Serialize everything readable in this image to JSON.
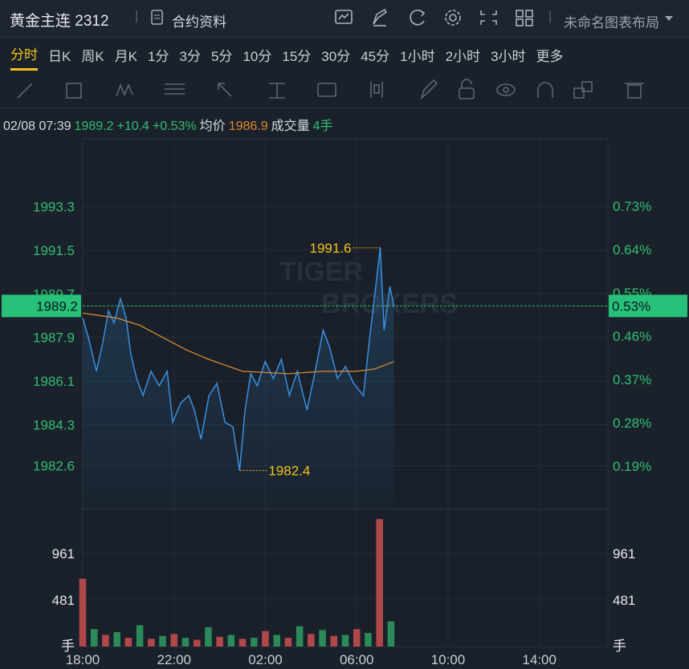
{
  "header": {
    "title": "黄金主连 2312",
    "contract_info": "合约资料",
    "layout_name": "未命名图表布局"
  },
  "tabs": [
    "分时",
    "日K",
    "周K",
    "月K",
    "1分",
    "3分",
    "5分",
    "10分",
    "15分",
    "30分",
    "45分",
    "1小时",
    "2小时",
    "3小时",
    "更多"
  ],
  "active_tab": 0,
  "info": {
    "datetime": "02/08 07:39",
    "price": 1989.2,
    "change": "+10.4",
    "change_pct": "+0.53%",
    "avg_label": "均价",
    "avg": 1986.9,
    "volume_label": "成交量",
    "volume": "4手"
  },
  "watermark": [
    "TIGER",
    "BROKERS"
  ],
  "chart_data": {
    "type": "line",
    "series": [
      {
        "name": "价格",
        "color": "#3a8fe0",
        "x": [
          0,
          0.25,
          0.6,
          0.88,
          1.13,
          1.37,
          1.65,
          1.9,
          2.11,
          2.36,
          2.64,
          2.99,
          3.35,
          3.7,
          3.94,
          4.3,
          4.65,
          4.89,
          5.18,
          5.53,
          5.88,
          6.23,
          6.58,
          6.87,
          7.11,
          7.36,
          7.64,
          7.99,
          8.35,
          8.7,
          9.05,
          9.4,
          9.82,
          10.18,
          10.53,
          10.81,
          11.16,
          11.51,
          11.87,
          12.29,
          12.57,
          12.82,
          13.03,
          13.2,
          13.45,
          13.63
        ],
        "values": [
          1988.7,
          1987.9,
          1986.5,
          1987.7,
          1989.0,
          1988.5,
          1989.5,
          1988.7,
          1987.2,
          1986.2,
          1985.5,
          1986.5,
          1985.9,
          1986.5,
          1984.4,
          1985.2,
          1985.5,
          1984.9,
          1983.7,
          1985.5,
          1986.0,
          1984.4,
          1984.2,
          1982.4,
          1984.9,
          1986.4,
          1985.9,
          1986.9,
          1986.2,
          1987.0,
          1985.5,
          1986.5,
          1984.9,
          1986.5,
          1988.2,
          1987.5,
          1986.2,
          1986.7,
          1986.0,
          1985.5,
          1987.9,
          1989.9,
          1991.6,
          1988.2,
          1990.0,
          1989.2
        ]
      },
      {
        "name": "均价",
        "color": "#d98a32",
        "x": [
          0,
          1.5,
          2.5,
          3.5,
          4.5,
          5.5,
          7,
          9,
          10.5,
          12,
          12.8,
          13.63
        ],
        "values": [
          1988.9,
          1988.7,
          1988.4,
          1987.9,
          1987.4,
          1987.0,
          1986.5,
          1986.4,
          1986.5,
          1986.5,
          1986.6,
          1986.9
        ]
      }
    ],
    "ylim": [
      1980.8,
      1996.1
    ],
    "yticks": [
      1982.6,
      1984.3,
      1986.1,
      1987.9,
      1989.7,
      1991.5,
      1993.3
    ],
    "y2lim": [
      0.1,
      0.87
    ],
    "y2ticks": [
      {
        "value": 0.19,
        "label": "0.19%"
      },
      {
        "value": 0.28,
        "label": "0.28%"
      },
      {
        "value": 0.37,
        "label": "0.37%"
      },
      {
        "value": 0.46,
        "label": "0.46%"
      },
      {
        "value": 0.55,
        "label": "0.55%"
      },
      {
        "value": 0.64,
        "label": "0.64%"
      },
      {
        "value": 0.73,
        "label": "0.73%"
      }
    ],
    "xlim": [
      0,
      23
    ],
    "xticks": [
      {
        "value": 0,
        "label": "18:00"
      },
      {
        "value": 4,
        "label": "22:00"
      },
      {
        "value": 8,
        "label": "02:00"
      },
      {
        "value": 12,
        "label": "06:00"
      },
      {
        "value": 16,
        "label": "10:00"
      },
      {
        "value": 20,
        "label": "14:00"
      }
    ],
    "annotations": [
      {
        "x": 13.03,
        "value": 1991.6
      },
      {
        "x": 6.87,
        "value": 1982.4
      }
    ],
    "last_price": 1989.2,
    "last_pct_label": "0.53%",
    "volume": {
      "color": "#b0484a",
      "x": [
        0,
        0.5,
        1,
        1.5,
        2,
        2.5,
        3,
        3.5,
        4,
        4.5,
        5,
        5.5,
        6,
        6.5,
        7,
        7.5,
        8,
        8.5,
        9,
        9.5,
        10,
        10.5,
        11,
        11.5,
        12,
        12.5,
        13,
        13.5
      ],
      "values": [
        700,
        180,
        120,
        150,
        90,
        220,
        80,
        110,
        130,
        90,
        70,
        200,
        100,
        120,
        80,
        90,
        160,
        120,
        90,
        210,
        130,
        170,
        110,
        120,
        180,
        140,
        1316,
        260
      ],
      "ylim": [
        0,
        1416
      ],
      "yticks": [
        481,
        961
      ],
      "unit": "手"
    }
  }
}
